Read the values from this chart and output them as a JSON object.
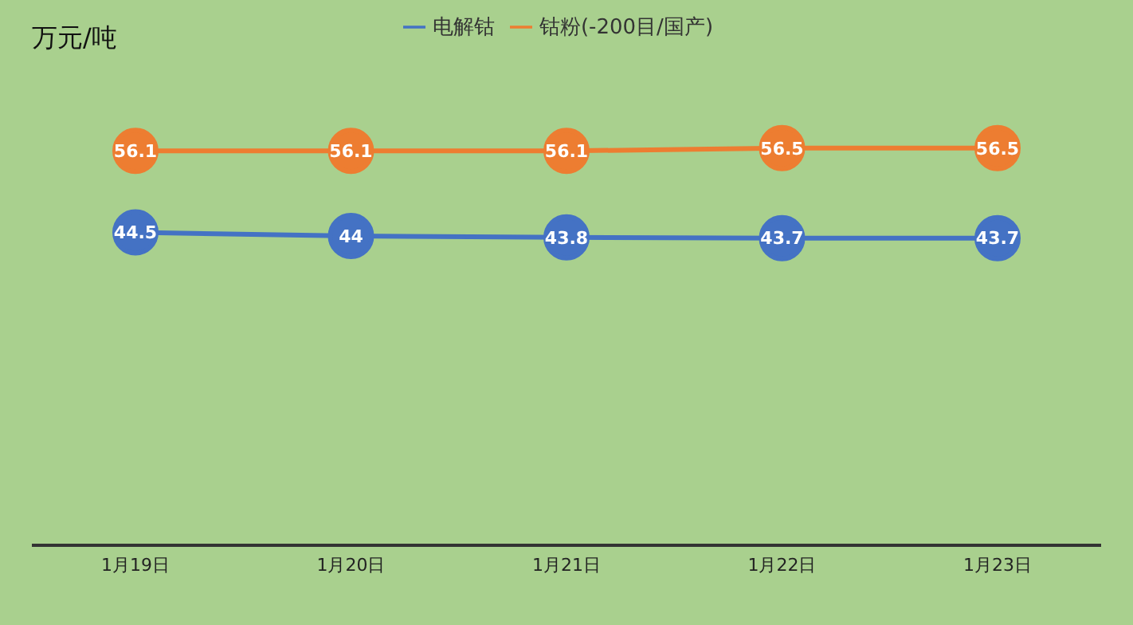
{
  "chart_data": {
    "type": "line",
    "title": "万元/吨",
    "categories": [
      "1月19日",
      "1月20日",
      "1月21日",
      "1月22日",
      "1月23日"
    ],
    "series": [
      {
        "name": "电解钴",
        "color": "#4472c4",
        "values": [
          44.5,
          44,
          43.8,
          43.7,
          43.7
        ]
      },
      {
        "name": "钴粉(-200目/国产)",
        "color": "#ed7d31",
        "values": [
          56.1,
          56.1,
          56.1,
          56.5,
          56.5
        ]
      }
    ],
    "data_labels": true,
    "legend": "top",
    "marker": "circle"
  }
}
